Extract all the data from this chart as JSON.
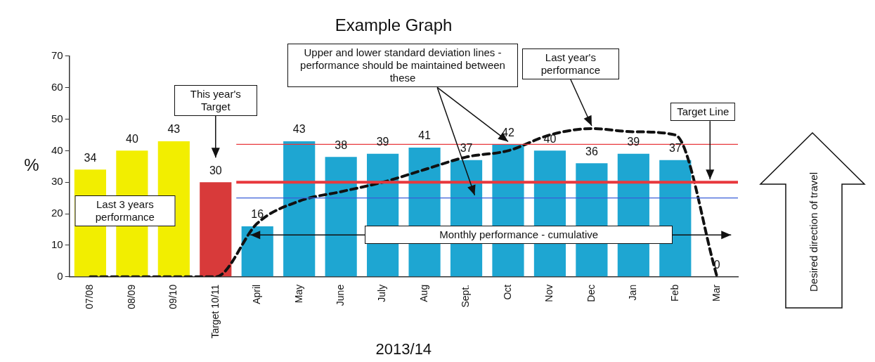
{
  "chart_data": {
    "type": "bar",
    "title": "Example Graph",
    "xlabel": "2013/14",
    "ylabel": "%",
    "categories": [
      "07/08",
      "08/09",
      "09/10",
      "Target 10/11",
      "April",
      "May",
      "June",
      "July",
      "Aug",
      "Sept.",
      "Oct",
      "Nov",
      "Dec",
      "Jan",
      "Feb",
      "Mar"
    ],
    "series": [
      {
        "colors": [
          "#f2ee00",
          "#f2ee00",
          "#f2ee00",
          "#d83a3a",
          "#1ea6d2",
          "#1ea6d2",
          "#1ea6d2",
          "#1ea6d2",
          "#1ea6d2",
          "#1ea6d2",
          "#1ea6d2",
          "#1ea6d2",
          "#1ea6d2",
          "#1ea6d2",
          "#1ea6d2",
          "#1ea6d2"
        ],
        "values": [
          34,
          40,
          43,
          30,
          16,
          43,
          38,
          39,
          41,
          37,
          42,
          40,
          36,
          39,
          37,
          0
        ],
        "value_labels": [
          "34",
          "40",
          "43",
          "30",
          "16",
          "43",
          "38",
          "39",
          "41",
          "37",
          "42",
          "40",
          "36",
          "39",
          "37",
          "0"
        ]
      },
      {
        "type": "line",
        "color": "#111111",
        "line_style": "dashed",
        "marker": "none",
        "values": [
          0,
          0,
          0,
          0,
          17,
          24,
          27,
          30,
          34,
          38,
          40,
          45,
          47,
          46,
          45,
          0
        ]
      }
    ],
    "ylim": [
      0,
      70
    ],
    "yticks": [
      0,
      10,
      20,
      30,
      40,
      50,
      60,
      70
    ],
    "grid": false,
    "legend": false,
    "ref_lines": [
      {
        "axis": "y",
        "value": 30,
        "label": "Target Line",
        "color": "#e8383d"
      },
      {
        "axis": "y",
        "value": 42,
        "color": "#e8383d"
      },
      {
        "axis": "y",
        "value": 25,
        "color": "#3a5fd8"
      }
    ],
    "annotations": [
      "This year's Target",
      "Last 3 years performance",
      {
        "text": "Upper and lower standard deviation lines -  performance should be maintained between these",
        "x": "Oct",
        "y": 42
      },
      {
        "text": "Last year's performance",
        "x": "Dec",
        "y": 47
      },
      "Monthly performance - cumulative",
      "Desired direction of travel"
    ]
  }
}
